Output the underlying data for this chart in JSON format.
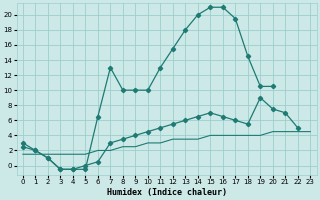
{
  "xlabel": "Humidex (Indice chaleur)",
  "background_color": "#cce9e8",
  "grid_color": "#9ccfcc",
  "line_color": "#1e7a72",
  "xlim": [
    -0.5,
    23.5
  ],
  "ylim": [
    -1.2,
    21.5
  ],
  "xticks": [
    0,
    1,
    2,
    3,
    4,
    5,
    6,
    7,
    8,
    9,
    10,
    11,
    12,
    13,
    14,
    15,
    16,
    17,
    18,
    19,
    20,
    21,
    22,
    23
  ],
  "yticks": [
    0,
    2,
    4,
    6,
    8,
    10,
    12,
    14,
    16,
    18,
    20
  ],
  "series1_x": [
    0,
    1,
    2,
    3,
    4,
    5,
    6,
    7,
    8,
    9,
    10,
    11,
    12,
    13,
    14,
    15,
    16,
    17,
    18,
    19,
    20
  ],
  "series1_y": [
    3.0,
    2.0,
    1.0,
    -0.5,
    -0.5,
    -0.5,
    6.5,
    13.0,
    10.0,
    10.0,
    10.0,
    13.0,
    15.5,
    18.0,
    20.0,
    21.0,
    21.0,
    19.5,
    14.5,
    10.5,
    10.5
  ],
  "series2_x": [
    0,
    1,
    2,
    3,
    4,
    5,
    6,
    7,
    8,
    9,
    10,
    11,
    12,
    13,
    14,
    15,
    16,
    17,
    18,
    19,
    20,
    21,
    22,
    23
  ],
  "series2_y": [
    2.5,
    2.0,
    1.0,
    -0.5,
    -0.5,
    0.0,
    0.5,
    3.0,
    3.5,
    4.0,
    4.5,
    5.0,
    5.5,
    6.0,
    6.5,
    7.0,
    6.5,
    6.0,
    5.5,
    9.0,
    7.5,
    7.0,
    5.0,
    null
  ],
  "series3_x": [
    0,
    1,
    2,
    3,
    4,
    5,
    6,
    7,
    8,
    9,
    10,
    11,
    12,
    13,
    14,
    15,
    16,
    17,
    18,
    19,
    20,
    21,
    22,
    23
  ],
  "series3_y": [
    1.5,
    1.5,
    1.5,
    1.5,
    1.5,
    1.5,
    2.0,
    2.0,
    2.5,
    2.5,
    3.0,
    3.0,
    3.5,
    3.5,
    3.5,
    4.0,
    4.0,
    4.0,
    4.0,
    4.0,
    4.5,
    4.5,
    4.5,
    4.5
  ],
  "xtick_fontsize": 5,
  "ytick_fontsize": 5,
  "xlabel_fontsize": 6
}
